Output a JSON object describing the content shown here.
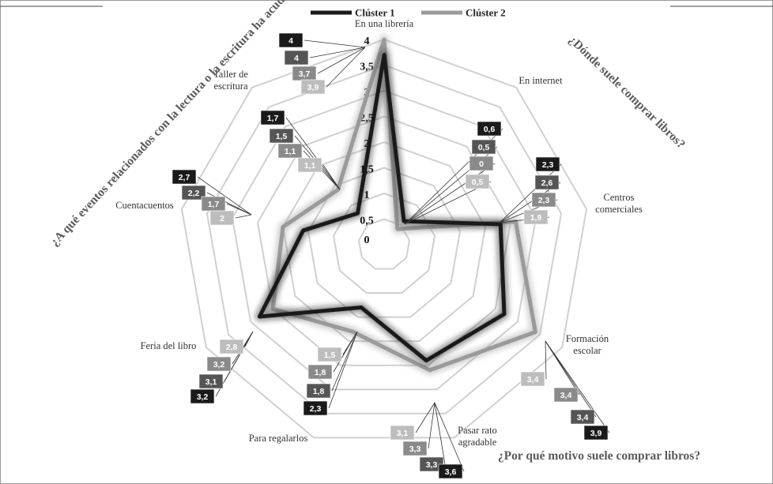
{
  "chart_data": {
    "type": "radar",
    "title": "",
    "rmax": 4,
    "ticks": [
      "0",
      "0,5",
      "1",
      "1,5",
      "2",
      "2,5",
      "3",
      "3,5",
      "4"
    ],
    "grid": true,
    "legend_position": "top-center",
    "categories": [
      "En una librería",
      "En internet",
      "Centros comerciales",
      "Formación escolar",
      "Pasar rato agradable",
      "Para regalarlos",
      "Feria del libro",
      "Cuentacuentos",
      "Taller de escritura"
    ],
    "series": [
      {
        "name": "Clúster 1",
        "color": "#1a1a1a",
        "values": [
          3.7,
          0.6,
          2.3,
          2.7,
          2.4,
          1.3,
          2.8,
          1.6,
          0.8
        ]
      },
      {
        "name": "Clúster 2",
        "color": "#9a9a9a",
        "values": [
          4.0,
          0.4,
          2.6,
          3.4,
          2.6,
          1.8,
          2.5,
          2.0,
          1.4
        ]
      }
    ],
    "label_groups": [
      {
        "axis": "En una librería",
        "labels": [
          "4",
          "4",
          "3,7",
          "3,9"
        ]
      },
      {
        "axis": "Taller de escritura",
        "labels": [
          "1,7",
          "1,5",
          "1,1",
          "1,1"
        ]
      },
      {
        "axis": "Cuentacuentos",
        "labels": [
          "2,7",
          "2,2",
          "1,7",
          "2"
        ]
      },
      {
        "axis": "Feria del libro",
        "labels": [
          "2,8",
          "3,2",
          "3,1",
          "3,2"
        ]
      },
      {
        "axis": "Para regalarlos",
        "labels": [
          "1,5",
          "1,8",
          "1,8",
          "2,3"
        ]
      },
      {
        "axis": "Pasar rato agradable",
        "labels": [
          "3,1",
          "3,3",
          "3,3",
          "3,6"
        ]
      },
      {
        "axis": "En internet",
        "labels": [
          "0,6",
          "0,5",
          "0",
          "0,5"
        ]
      },
      {
        "axis": "Centros comerciales",
        "labels": [
          "2,3",
          "2,6",
          "2,3",
          "1,9"
        ]
      },
      {
        "axis": "Formación escolar",
        "labels": [
          "3,4",
          "3,4",
          "3,4",
          "3,9"
        ]
      }
    ],
    "annotations": [
      "¿A qué eventos relacionados con la lectura o la escritura ha acudido?",
      "¿Dónde suele comprar libros?",
      "¿Por qué motivo suele comprar libros?"
    ]
  }
}
